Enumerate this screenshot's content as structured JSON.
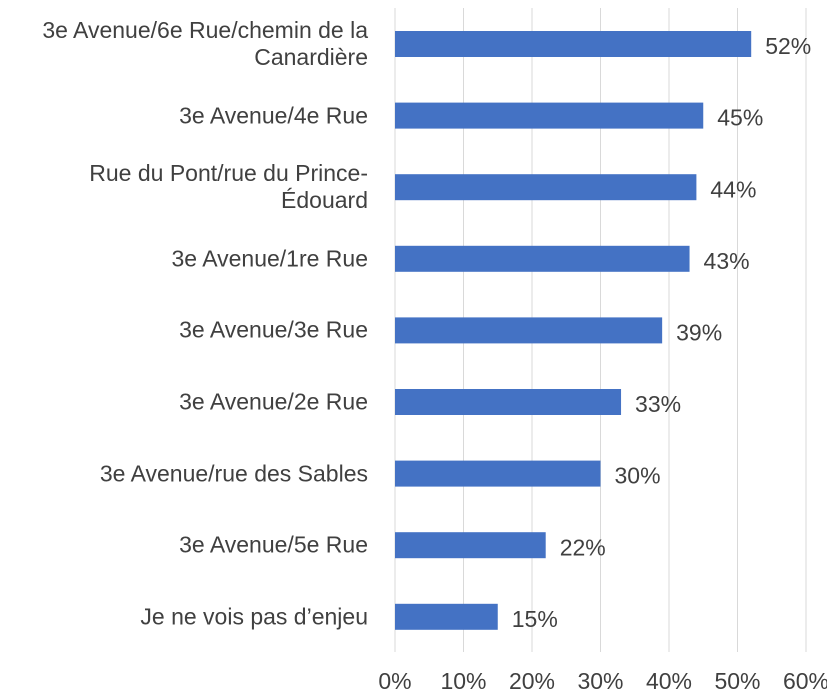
{
  "chart_data": {
    "type": "barh",
    "categories": [
      "3e Avenue/6e Rue/chemin de la Canardière",
      "3e Avenue/4e Rue",
      "Rue du Pont/rue du Prince-Édouard",
      "3e Avenue/1re Rue",
      "3e Avenue/3e Rue",
      "3e Avenue/2e Rue",
      "3e Avenue/rue des Sables",
      "3e Avenue/5e Rue",
      "Je ne vois pas d’enjeu"
    ],
    "values": [
      52,
      45,
      44,
      43,
      39,
      33,
      30,
      22,
      15
    ],
    "value_labels": [
      "52%",
      "45%",
      "44%",
      "43%",
      "39%",
      "33%",
      "30%",
      "22%",
      "15%"
    ],
    "color": "#4472c4",
    "xlim": [
      0,
      60
    ],
    "xticks": [
      {
        "value": 0,
        "label": "0%"
      },
      {
        "value": 10,
        "label": "10%"
      },
      {
        "value": 20,
        "label": "20%"
      },
      {
        "value": 30,
        "label": "30%"
      },
      {
        "value": 40,
        "label": "40%"
      },
      {
        "value": 50,
        "label": "50%"
      },
      {
        "value": 60,
        "label": "60%"
      }
    ],
    "grid": true
  }
}
